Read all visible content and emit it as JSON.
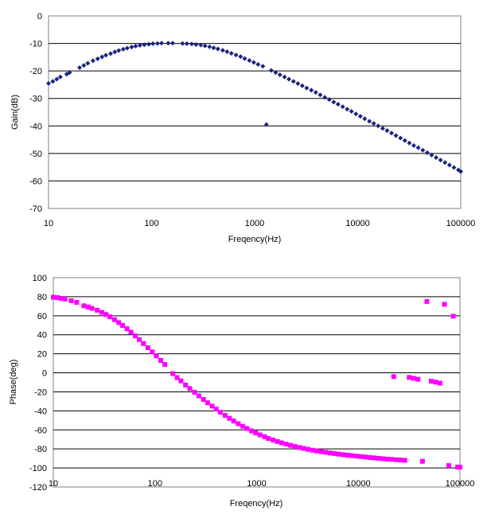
{
  "chart_data": [
    {
      "type": "scatter",
      "xscale": "log",
      "xlim": [
        10,
        100000
      ],
      "ylim": [
        -70,
        0
      ],
      "xticks": [
        "10",
        "100",
        "1000",
        "10000",
        "100000"
      ],
      "yticks": [
        "0",
        "-10",
        "-20",
        "-30",
        "-40",
        "-50",
        "-60",
        "-70"
      ],
      "xlabel": "Freqency(Hz)",
      "ylabel": "Gain(dB)",
      "grid": "horizontal",
      "marker": "diamond",
      "color": "#1a237e",
      "points": [
        [
          10,
          -24.5
        ],
        [
          11,
          -23.8
        ],
        [
          12,
          -23.0
        ],
        [
          13,
          -22.2
        ],
        [
          15,
          -21.2
        ],
        [
          16,
          -20.6
        ],
        [
          20,
          -18.8
        ],
        [
          22,
          -18.0
        ],
        [
          24,
          -17.2
        ],
        [
          27,
          -16.3
        ],
        [
          30,
          -15.6
        ],
        [
          33,
          -14.9
        ],
        [
          36,
          -14.3
        ],
        [
          40,
          -13.7
        ],
        [
          44,
          -13.1
        ],
        [
          48,
          -12.6
        ],
        [
          53,
          -12.1
        ],
        [
          58,
          -11.7
        ],
        [
          64,
          -11.3
        ],
        [
          70,
          -11.0
        ],
        [
          77,
          -10.7
        ],
        [
          85,
          -10.5
        ],
        [
          94,
          -10.3
        ],
        [
          103,
          -10.1
        ],
        [
          114,
          -10.0
        ],
        [
          125,
          -9.9
        ],
        [
          145,
          -9.9
        ],
        [
          160,
          -9.9
        ],
        [
          200,
          -10.0
        ],
        [
          220,
          -10.1
        ],
        [
          245,
          -10.2
        ],
        [
          270,
          -10.4
        ],
        [
          300,
          -10.6
        ],
        [
          330,
          -10.9
        ],
        [
          365,
          -11.2
        ],
        [
          400,
          -11.6
        ],
        [
          440,
          -12.0
        ],
        [
          490,
          -12.5
        ],
        [
          540,
          -13.0
        ],
        [
          595,
          -13.6
        ],
        [
          660,
          -14.2
        ],
        [
          730,
          -14.8
        ],
        [
          800,
          -15.5
        ],
        [
          890,
          -16.2
        ],
        [
          980,
          -16.9
        ],
        [
          1080,
          -17.6
        ],
        [
          1200,
          -18.3
        ],
        [
          1300,
          -39.5
        ],
        [
          1450,
          -19.8
        ],
        [
          1600,
          -20.6
        ],
        [
          1760,
          -21.4
        ],
        [
          1950,
          -22.2
        ],
        [
          2150,
          -23.0
        ],
        [
          2380,
          -23.8
        ],
        [
          2630,
          -24.6
        ],
        [
          2900,
          -25.4
        ],
        [
          3200,
          -26.2
        ],
        [
          3550,
          -27.0
        ],
        [
          3920,
          -27.8
        ],
        [
          4330,
          -28.7
        ],
        [
          4800,
          -29.6
        ],
        [
          5300,
          -30.4
        ],
        [
          5850,
          -31.3
        ],
        [
          6450,
          -32.1
        ],
        [
          7150,
          -33.0
        ],
        [
          7900,
          -33.9
        ],
        [
          8700,
          -34.7
        ],
        [
          9600,
          -35.6
        ],
        [
          10600,
          -36.5
        ],
        [
          11700,
          -37.4
        ],
        [
          13000,
          -38.3
        ],
        [
          14300,
          -39.1
        ],
        [
          15800,
          -40.0
        ],
        [
          17500,
          -40.9
        ],
        [
          19300,
          -41.7
        ],
        [
          21300,
          -42.6
        ],
        [
          23500,
          -43.5
        ],
        [
          26000,
          -44.4
        ],
        [
          28700,
          -45.3
        ],
        [
          31700,
          -46.2
        ],
        [
          35000,
          -47.1
        ],
        [
          38700,
          -47.9
        ],
        [
          42800,
          -48.8
        ],
        [
          47300,
          -49.7
        ],
        [
          52200,
          -50.6
        ],
        [
          57700,
          -51.5
        ],
        [
          63700,
          -52.4
        ],
        [
          70400,
          -53.3
        ],
        [
          77700,
          -54.2
        ],
        [
          85900,
          -55.1
        ],
        [
          94900,
          -56.0
        ],
        [
          100000,
          -56.6
        ]
      ]
    },
    {
      "type": "scatter",
      "xscale": "log",
      "xlim": [
        10,
        100000
      ],
      "ylim": [
        -120,
        100
      ],
      "xticks": [
        "10",
        "100",
        "1000",
        "10000",
        "100000"
      ],
      "yticks": [
        "100",
        "80",
        "60",
        "40",
        "20",
        "0",
        "-20",
        "-40",
        "-60",
        "-80",
        "-100",
        "-120"
      ],
      "xlabel": "Freqency(Hz)",
      "ylabel": "Phase(deg)",
      "grid": "horizontal",
      "marker": "square",
      "color": "#ff00ff",
      "points": [
        [
          10,
          79.5
        ],
        [
          11,
          79
        ],
        [
          12,
          78.3
        ],
        [
          13,
          77.6
        ],
        [
          15,
          75.8
        ],
        [
          17,
          74
        ],
        [
          20,
          70.5
        ],
        [
          22,
          69.2
        ],
        [
          24,
          67.8
        ],
        [
          27,
          65.8
        ],
        [
          30,
          63.5
        ],
        [
          33,
          61.3
        ],
        [
          36,
          58.9
        ],
        [
          40,
          55.9
        ],
        [
          44,
          52.8
        ],
        [
          48,
          49.8
        ],
        [
          53,
          46.3
        ],
        [
          58,
          42.8
        ],
        [
          64,
          38.8
        ],
        [
          70,
          35
        ],
        [
          77,
          30.8
        ],
        [
          85,
          26.4
        ],
        [
          94,
          22
        ],
        [
          103,
          17.7
        ],
        [
          114,
          13
        ],
        [
          125,
          8.8
        ],
        [
          150,
          -0.8
        ],
        [
          165,
          -5
        ],
        [
          180,
          -8.5
        ],
        [
          200,
          -12.8
        ],
        [
          220,
          -16.5
        ],
        [
          245,
          -20.5
        ],
        [
          270,
          -24.2
        ],
        [
          300,
          -28
        ],
        [
          330,
          -31.5
        ],
        [
          365,
          -35
        ],
        [
          400,
          -38.2
        ],
        [
          440,
          -41.5
        ],
        [
          490,
          -44.8
        ],
        [
          540,
          -47.8
        ],
        [
          595,
          -50.7
        ],
        [
          660,
          -53.5
        ],
        [
          730,
          -56.2
        ],
        [
          800,
          -58.5
        ],
        [
          890,
          -61
        ],
        [
          980,
          -63.2
        ],
        [
          1080,
          -65.2
        ],
        [
          1200,
          -67.2
        ],
        [
          1300,
          -69
        ],
        [
          1450,
          -70.6
        ],
        [
          1600,
          -72.2
        ],
        [
          1760,
          -73.6
        ],
        [
          1950,
          -75
        ],
        [
          2150,
          -76.2
        ],
        [
          2380,
          -77.4
        ],
        [
          2630,
          -78.5
        ],
        [
          2900,
          -79.5
        ],
        [
          3200,
          -80.4
        ],
        [
          3550,
          -81.3
        ],
        [
          3920,
          -82.1
        ],
        [
          4330,
          -82.9
        ],
        [
          4800,
          -83.6
        ],
        [
          5300,
          -84.3
        ],
        [
          5850,
          -84.9
        ],
        [
          6450,
          -85.5
        ],
        [
          7150,
          -86.1
        ],
        [
          7900,
          -86.6
        ],
        [
          8700,
          -87.1
        ],
        [
          9600,
          -87.6
        ],
        [
          10600,
          -88
        ],
        [
          11700,
          -88.5
        ],
        [
          13000,
          -89
        ],
        [
          14300,
          -89.4
        ],
        [
          15800,
          -89.9
        ],
        [
          17500,
          -90.3
        ],
        [
          19300,
          -90.7
        ],
        [
          21300,
          -91
        ],
        [
          23500,
          -91.4
        ],
        [
          26000,
          -91.7
        ],
        [
          28700,
          -92
        ],
        [
          22300,
          -4
        ],
        [
          31700,
          -4.8
        ],
        [
          35000,
          -5.8
        ],
        [
          38700,
          -6.8
        ],
        [
          42800,
          -93
        ],
        [
          47300,
          75
        ],
        [
          52200,
          -8.8
        ],
        [
          57700,
          -9.8
        ],
        [
          63700,
          -10.8
        ],
        [
          70400,
          72
        ],
        [
          77700,
          -97.5
        ],
        [
          85900,
          59.5
        ],
        [
          94900,
          -99
        ],
        [
          100000,
          -99.2
        ]
      ]
    }
  ]
}
